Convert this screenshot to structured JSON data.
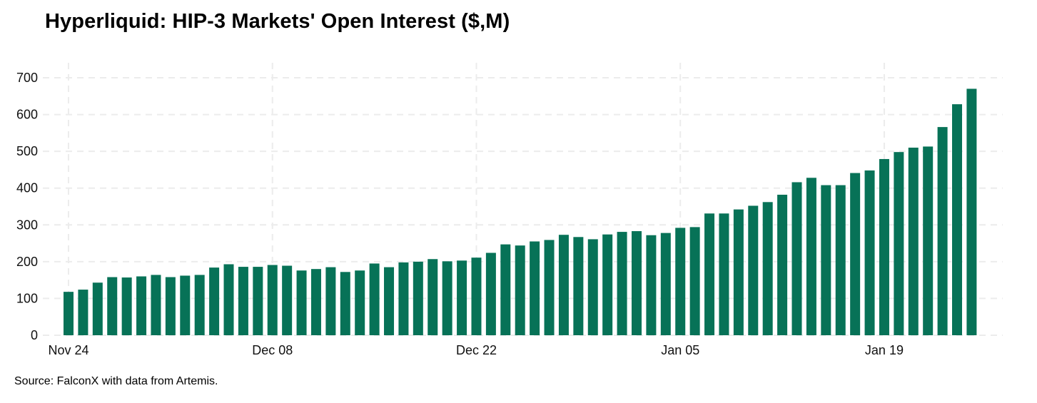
{
  "chart_data": {
    "type": "bar",
    "title": "Hyperliquid: HIP-3 Markets' Open Interest ($,M)",
    "source": "Source: FalconX with data from Artemis.",
    "xlabel": "",
    "ylabel": "",
    "ylim": [
      0,
      700
    ],
    "yticks": [
      0,
      100,
      200,
      300,
      400,
      500,
      600,
      700
    ],
    "xticks": [
      {
        "label": "Nov 24",
        "date": "2025-11-24"
      },
      {
        "label": "Dec 08",
        "date": "2025-12-08"
      },
      {
        "label": "Dec 22",
        "date": "2025-12-22"
      },
      {
        "label": "Jan 05",
        "date": "2026-01-05"
      },
      {
        "label": "Jan 19",
        "date": "2026-01-19"
      }
    ],
    "grid": true,
    "bar_color": "#077257",
    "grid_color": "#ececec",
    "dates": [
      "2025-11-24",
      "2025-11-25",
      "2025-11-26",
      "2025-11-27",
      "2025-11-28",
      "2025-11-29",
      "2025-11-30",
      "2025-12-01",
      "2025-12-02",
      "2025-12-03",
      "2025-12-04",
      "2025-12-05",
      "2025-12-06",
      "2025-12-07",
      "2025-12-08",
      "2025-12-09",
      "2025-12-10",
      "2025-12-11",
      "2025-12-12",
      "2025-12-13",
      "2025-12-14",
      "2025-12-15",
      "2025-12-16",
      "2025-12-17",
      "2025-12-18",
      "2025-12-19",
      "2025-12-20",
      "2025-12-21",
      "2025-12-22",
      "2025-12-23",
      "2025-12-24",
      "2025-12-25",
      "2025-12-26",
      "2025-12-27",
      "2025-12-28",
      "2025-12-29",
      "2025-12-30",
      "2025-12-31",
      "2026-01-01",
      "2026-01-02",
      "2026-01-03",
      "2026-01-04",
      "2026-01-05",
      "2026-01-06",
      "2026-01-07",
      "2026-01-08",
      "2026-01-09",
      "2026-01-10",
      "2026-01-11",
      "2026-01-12",
      "2026-01-13",
      "2026-01-14",
      "2026-01-15",
      "2026-01-16",
      "2026-01-17",
      "2026-01-18",
      "2026-01-19",
      "2026-01-20",
      "2026-01-21",
      "2026-01-22",
      "2026-01-23",
      "2026-01-24",
      "2026-01-25",
      "2026-01-26"
    ],
    "values": [
      118,
      124,
      143,
      158,
      157,
      160,
      164,
      158,
      162,
      164,
      184,
      193,
      186,
      186,
      191,
      189,
      176,
      180,
      185,
      172,
      176,
      195,
      185,
      198,
      200,
      207,
      201,
      203,
      211,
      224,
      247,
      244,
      255,
      259,
      273,
      267,
      261,
      274,
      281,
      283,
      272,
      278,
      292,
      294,
      331,
      331,
      342,
      352,
      362,
      382,
      416,
      428,
      408,
      408,
      441,
      448,
      479,
      498,
      510,
      513,
      566,
      628,
      670,
      0
    ]
  }
}
